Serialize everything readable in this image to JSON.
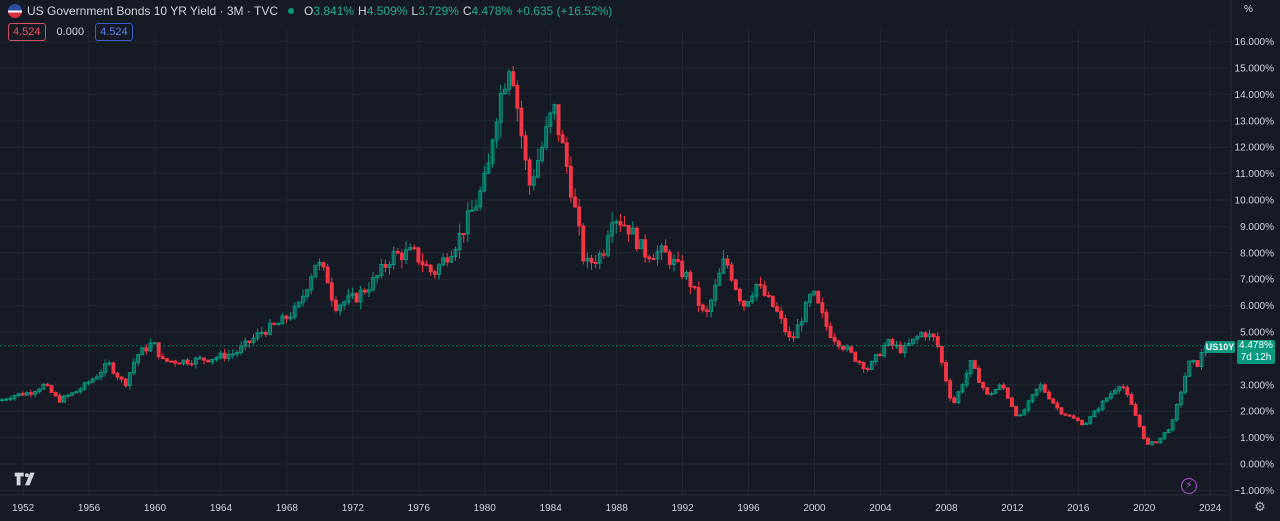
{
  "header": {
    "title": "US Government Bonds 10 YR Yield · 3M · TVC",
    "ohlc": [
      {
        "key": "O",
        "value": "3.841%"
      },
      {
        "key": "H",
        "value": "4.509%"
      },
      {
        "key": "L",
        "value": "3.729%"
      },
      {
        "key": "C",
        "value": "4.478%"
      },
      {
        "key": "",
        "value": "+0.635 (+16.52%)"
      }
    ]
  },
  "badges": {
    "left": "4.524",
    "middle": "0.000",
    "right": "4.524"
  },
  "scale_mode": "%",
  "price_tag": {
    "symbol": "US10Y",
    "price": "4.478%",
    "countdown": "7d 12h"
  },
  "colors": {
    "up": "#089981",
    "down": "#f23645",
    "background": "#161a25",
    "grid": "#232733"
  },
  "chart_data": {
    "type": "candlestick",
    "title": "US Government Bonds 10 YR Yield · 3M · TVC",
    "interval": "3M",
    "x_ticks": [
      "1952",
      "1956",
      "1960",
      "1964",
      "1968",
      "1972",
      "1976",
      "1980",
      "1984",
      "1988",
      "1992",
      "1996",
      "2000",
      "2004",
      "2008",
      "2012",
      "2016",
      "2020",
      "2024"
    ],
    "y_ticks": [
      "16.000%",
      "15.000%",
      "14.000%",
      "13.000%",
      "12.000%",
      "11.000%",
      "10.000%",
      "9.000%",
      "8.000%",
      "7.000%",
      "6.000%",
      "5.000%",
      "3.000%",
      "2.000%",
      "1.000%",
      "0.000%",
      "−1.000%"
    ],
    "ylim": [
      -1.0,
      16.5
    ],
    "xlim": [
      1950.6,
      2025.2
    ],
    "grid": true,
    "series": [
      {
        "name": "US10Y",
        "close_points": [
          [
            1950.7,
            2.4
          ],
          [
            1951.5,
            2.6
          ],
          [
            1952.5,
            2.7
          ],
          [
            1953.4,
            3.0
          ],
          [
            1954.3,
            2.4
          ],
          [
            1955.5,
            2.8
          ],
          [
            1956.5,
            3.3
          ],
          [
            1957.3,
            3.8
          ],
          [
            1958.3,
            3.0
          ],
          [
            1959.0,
            4.1
          ],
          [
            1960.0,
            4.6
          ],
          [
            1960.6,
            3.9
          ],
          [
            1962.0,
            3.9
          ],
          [
            1963.5,
            4.0
          ],
          [
            1965.0,
            4.2
          ],
          [
            1966.6,
            5.0
          ],
          [
            1967.6,
            5.3
          ],
          [
            1968.8,
            5.9
          ],
          [
            1969.9,
            7.7
          ],
          [
            1970.6,
            7.0
          ],
          [
            1971.0,
            6.0
          ],
          [
            1972.3,
            6.3
          ],
          [
            1973.5,
            7.0
          ],
          [
            1974.5,
            7.9
          ],
          [
            1975.8,
            8.0
          ],
          [
            1977.0,
            7.2
          ],
          [
            1978.5,
            8.5
          ],
          [
            1979.7,
            10.0
          ],
          [
            1980.3,
            11.0
          ],
          [
            1980.7,
            13.0
          ],
          [
            1981.7,
            15.5
          ],
          [
            1982.0,
            14.0
          ],
          [
            1982.8,
            10.5
          ],
          [
            1983.6,
            12.0
          ],
          [
            1984.3,
            13.5
          ],
          [
            1985.2,
            11.0
          ],
          [
            1986.2,
            7.5
          ],
          [
            1987.3,
            8.0
          ],
          [
            1987.8,
            9.5
          ],
          [
            1988.8,
            9.0
          ],
          [
            1989.8,
            8.0
          ],
          [
            1991.0,
            8.0
          ],
          [
            1992.5,
            7.0
          ],
          [
            1993.5,
            5.5
          ],
          [
            1994.7,
            7.8
          ],
          [
            1995.8,
            6.0
          ],
          [
            1996.6,
            6.8
          ],
          [
            1997.8,
            5.8
          ],
          [
            1998.7,
            4.6
          ],
          [
            2000.0,
            6.5
          ],
          [
            2001.0,
            5.0
          ],
          [
            2002.6,
            4.0
          ],
          [
            2003.4,
            3.6
          ],
          [
            2004.5,
            4.6
          ],
          [
            2005.5,
            4.3
          ],
          [
            2006.7,
            5.0
          ],
          [
            2007.5,
            4.7
          ],
          [
            2008.5,
            2.2
          ],
          [
            2009.6,
            3.8
          ],
          [
            2010.6,
            2.6
          ],
          [
            2011.5,
            3.0
          ],
          [
            2012.5,
            1.7
          ],
          [
            2013.8,
            3.0
          ],
          [
            2015.0,
            2.0
          ],
          [
            2016.5,
            1.5
          ],
          [
            2017.7,
            2.4
          ],
          [
            2018.7,
            3.1
          ],
          [
            2019.5,
            2.0
          ],
          [
            2020.3,
            0.7
          ],
          [
            2021.0,
            0.9
          ],
          [
            2021.8,
            1.5
          ],
          [
            2022.8,
            3.8
          ],
          [
            2023.4,
            3.8
          ],
          [
            2023.8,
            4.48
          ]
        ]
      }
    ]
  }
}
